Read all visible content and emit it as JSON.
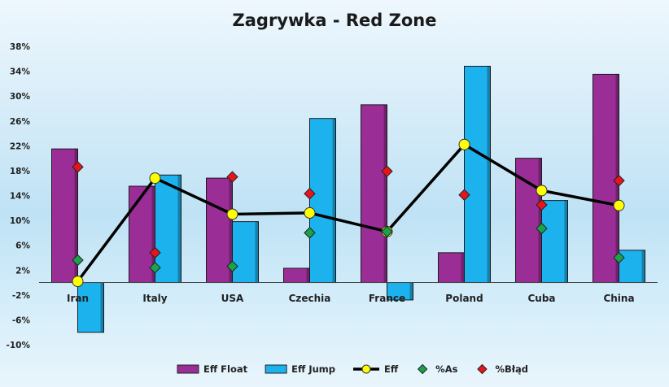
{
  "chart_data": {
    "type": "bar",
    "title": "Zagrywka - Red Zone",
    "categories": [
      "Iran",
      "Italy",
      "USA",
      "Czechia",
      "France",
      "Poland",
      "Cuba",
      "China"
    ],
    "ylim": [
      -10,
      38
    ],
    "yticks": [
      38,
      34,
      30,
      26,
      22,
      18,
      14,
      10,
      6,
      2,
      -2,
      -6,
      -10
    ],
    "ytick_labels": [
      "38%",
      "34%",
      "30%",
      "26%",
      "22%",
      "18%",
      "14%",
      "10%",
      "6%",
      "2%",
      "-2%",
      "-6%",
      "-10%"
    ],
    "grid": false,
    "legend_position": "bottom",
    "series": [
      {
        "name": "Eff Float",
        "kind": "bar",
        "color": "#9b2e96",
        "values": [
          21.5,
          15.5,
          16.8,
          2.3,
          28.6,
          4.8,
          20.0,
          33.5
        ]
      },
      {
        "name": "Eff Jump",
        "kind": "bar",
        "color": "#1cb2ee",
        "values": [
          -8.0,
          17.3,
          9.8,
          26.4,
          -2.8,
          34.8,
          13.2,
          5.2
        ]
      },
      {
        "name": "Eff",
        "kind": "line",
        "color": "#000000",
        "marker_color": "#ffff00",
        "values": [
          0.2,
          16.8,
          11.0,
          11.2,
          8.2,
          22.2,
          14.8,
          12.4
        ]
      },
      {
        "name": "%As",
        "kind": "marker",
        "color": "#1aa34a",
        "values": [
          3.6,
          2.4,
          2.6,
          8.0,
          8.2,
          null,
          8.7,
          4.0
        ]
      },
      {
        "name": "%Błąd",
        "kind": "marker",
        "color": "#e8141b",
        "values": [
          18.6,
          4.8,
          17.0,
          14.3,
          17.9,
          14.1,
          12.5,
          16.4
        ]
      }
    ]
  }
}
